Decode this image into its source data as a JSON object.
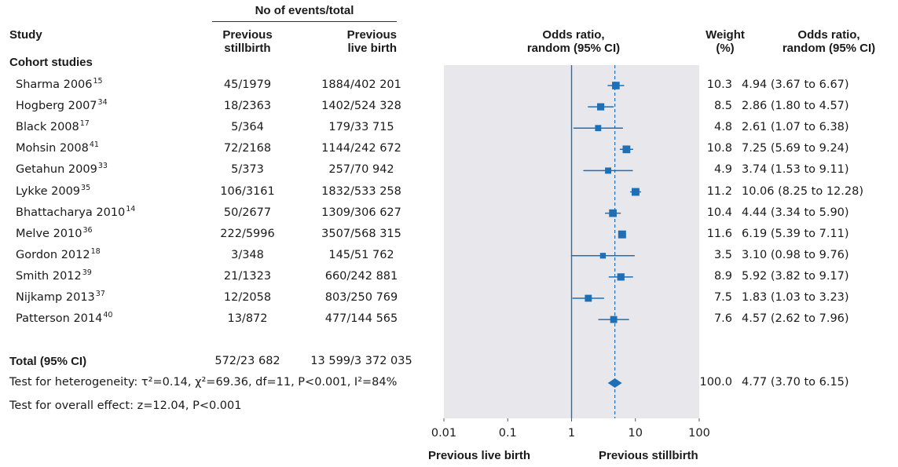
{
  "header": {
    "events_group": "No of events/total",
    "study": "Study",
    "prev_still_1": "Previous",
    "prev_still_2": "stillbirth",
    "prev_live_1": "Previous",
    "prev_live_2": "live birth",
    "plot_or_1": "Odds ratio,",
    "plot_or_2": "random (95% CI)",
    "weight_1": "Weight",
    "weight_2": "(%)",
    "or_1": "Odds ratio,",
    "or_2": "random (95% CI)"
  },
  "section_title": "Cohort studies",
  "total": {
    "label": "Total (95% CI)",
    "stillbirth": "572/23 682",
    "livebirth": "13 599/3 372 035",
    "weight": "100.0",
    "or_text": "4.77 (3.70 to 6.15)"
  },
  "heterogeneity_text": "Test for heterogeneity: τ²=0.14, χ²=69.36, df=11, P<0.001, I²=84%",
  "overall_text": "Test for overall effect: z=12.04, P<0.001",
  "chart_data": {
    "type": "forest",
    "x_scale": "log",
    "xlim": [
      0.01,
      100
    ],
    "x_ticks": [
      0.01,
      0.1,
      1,
      10,
      100
    ],
    "x_tick_labels": [
      "0.01",
      "0.1",
      "1",
      "10",
      "100"
    ],
    "null_value": 1,
    "left_label": "Previous live birth",
    "right_label": "Previous stillbirth",
    "colors": {
      "marker": "#1f6fb5",
      "panel": "#e8e8ec",
      "axis": "#555555"
    },
    "studies": [
      {
        "name": "Sharma 2006",
        "ref": "15",
        "stillbirth": "45/1979",
        "livebirth": "1884/402 201",
        "weight": 10.3,
        "or": 4.94,
        "lo": 3.67,
        "hi": 6.67,
        "or_text": "4.94 (3.67 to 6.67)"
      },
      {
        "name": "Hogberg 2007",
        "ref": "34",
        "stillbirth": "18/2363",
        "livebirth": "1402/524 328",
        "weight": 8.5,
        "or": 2.86,
        "lo": 1.8,
        "hi": 4.57,
        "or_text": "2.86 (1.80 to 4.57)"
      },
      {
        "name": "Black 2008",
        "ref": "17",
        "stillbirth": "5/364",
        "livebirth": "179/33 715",
        "weight": 4.8,
        "or": 2.61,
        "lo": 1.07,
        "hi": 6.38,
        "or_text": "2.61 (1.07 to 6.38)"
      },
      {
        "name": "Mohsin 2008",
        "ref": "41",
        "stillbirth": "72/2168",
        "livebirth": "1144/242 672",
        "weight": 10.8,
        "or": 7.25,
        "lo": 5.69,
        "hi": 9.24,
        "or_text": "7.25 (5.69 to 9.24)"
      },
      {
        "name": "Getahun 2009",
        "ref": "33",
        "stillbirth": "5/373",
        "livebirth": "257/70 942",
        "weight": 4.9,
        "or": 3.74,
        "lo": 1.53,
        "hi": 9.11,
        "or_text": "3.74 (1.53 to 9.11)"
      },
      {
        "name": "Lykke 2009",
        "ref": "35",
        "stillbirth": "106/3161",
        "livebirth": "1832/533 258",
        "weight": 11.2,
        "or": 10.06,
        "lo": 8.25,
        "hi": 12.28,
        "or_text": "10.06 (8.25 to 12.28)"
      },
      {
        "name": "Bhattacharya 2010",
        "ref": "14",
        "stillbirth": "50/2677",
        "livebirth": "1309/306 627",
        "weight": 10.4,
        "or": 4.44,
        "lo": 3.34,
        "hi": 5.9,
        "or_text": "4.44 (3.34 to 5.90)"
      },
      {
        "name": "Melve 2010",
        "ref": "36",
        "stillbirth": "222/5996",
        "livebirth": "3507/568 315",
        "weight": 11.6,
        "or": 6.19,
        "lo": 5.39,
        "hi": 7.11,
        "or_text": "6.19 (5.39 to 7.11)"
      },
      {
        "name": "Gordon 2012",
        "ref": "18",
        "stillbirth": "3/348",
        "livebirth": "145/51 762",
        "weight": 3.5,
        "or": 3.1,
        "lo": 0.98,
        "hi": 9.76,
        "or_text": "3.10 (0.98 to 9.76)"
      },
      {
        "name": "Smith 2012",
        "ref": "39",
        "stillbirth": "21/1323",
        "livebirth": "660/242 881",
        "weight": 8.9,
        "or": 5.92,
        "lo": 3.82,
        "hi": 9.17,
        "or_text": "5.92 (3.82 to 9.17)"
      },
      {
        "name": "Nijkamp 2013",
        "ref": "37",
        "stillbirth": "12/2058",
        "livebirth": "803/250 769",
        "weight": 7.5,
        "or": 1.83,
        "lo": 1.03,
        "hi": 3.23,
        "or_text": "1.83 (1.03 to 3.23)"
      },
      {
        "name": "Patterson 2014",
        "ref": "40",
        "stillbirth": "13/872",
        "livebirth": "477/144 565",
        "weight": 7.6,
        "or": 4.57,
        "lo": 2.62,
        "hi": 7.96,
        "or_text": "4.57 (2.62 to 7.96)"
      }
    ],
    "pooled": {
      "or": 4.77,
      "lo": 3.7,
      "hi": 6.15
    }
  }
}
